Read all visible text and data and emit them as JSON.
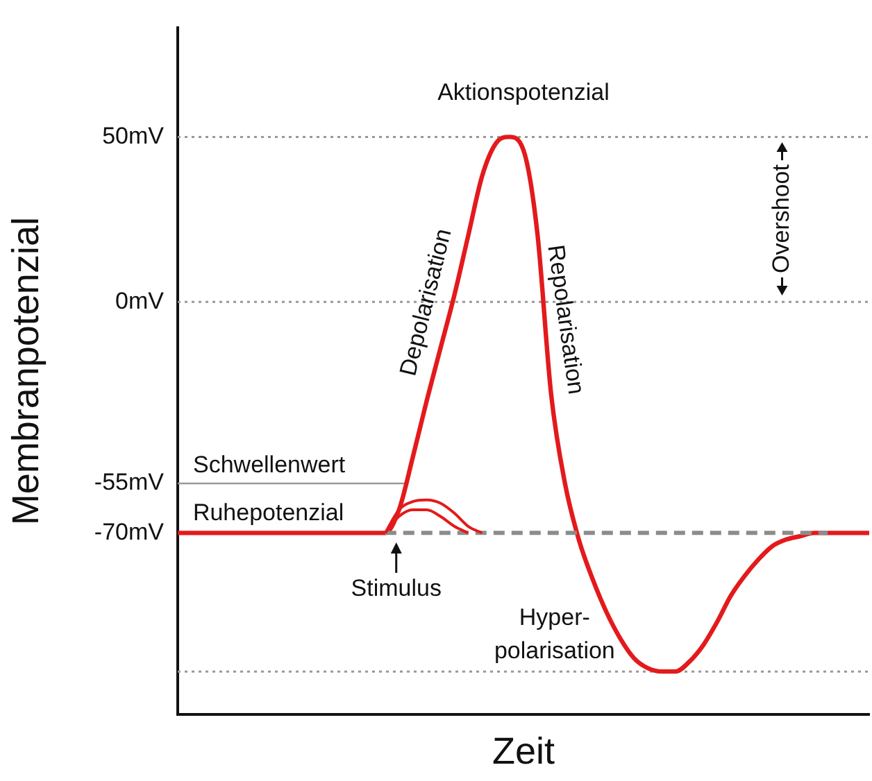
{
  "chart_data": {
    "type": "line",
    "title": "Aktionspotenzial",
    "xlabel": "Zeit",
    "ylabel": "Membranpotenzial",
    "categories": [
      null,
      null,
      null,
      null,
      null,
      null,
      null,
      null,
      null,
      null,
      null,
      null,
      null,
      null,
      null,
      null,
      null,
      null,
      null,
      null,
      null,
      null,
      null,
      null,
      null,
      null,
      null,
      null,
      null,
      null,
      null,
      null,
      null,
      null,
      null,
      null,
      null,
      null,
      null,
      null,
      null,
      null,
      null,
      null,
      null,
      null,
      null,
      null,
      null,
      null,
      null
    ],
    "series": [
      {
        "color": "#e31a1c",
        "values": [
          -70,
          -70,
          -70,
          -70,
          -70,
          -70,
          -70,
          -70,
          -70,
          -70,
          -70,
          -70,
          -70,
          -70,
          -70,
          -70,
          -63,
          -47,
          -30,
          -14,
          2,
          20,
          38,
          48,
          50,
          46,
          21,
          -28,
          -55,
          -72,
          -84,
          -94,
          -102,
          -108,
          -111,
          -112,
          -112,
          -109,
          -104,
          -97,
          -89,
          -83,
          -78,
          -74,
          -72,
          -71,
          -70,
          -70,
          -70,
          -70,
          -70
        ]
      },
      {
        "color": "#e31a1c",
        "values": [
          null,
          null,
          null,
          null,
          null,
          null,
          null,
          null,
          null,
          null,
          null,
          null,
          null,
          null,
          null,
          -70,
          -63,
          -60.5,
          -60,
          -61,
          -64,
          -68,
          -70,
          null,
          null,
          null,
          null,
          null,
          null,
          null,
          null,
          null,
          null,
          null,
          null,
          null,
          null,
          null,
          null,
          null,
          null,
          null,
          null,
          null,
          null,
          null,
          null,
          null,
          null,
          null,
          null
        ]
      },
      {
        "color": "#e31a1c",
        "values": [
          null,
          null,
          null,
          null,
          null,
          null,
          null,
          null,
          null,
          null,
          null,
          null,
          null,
          null,
          null,
          -70,
          -65,
          -63,
          -63,
          -65,
          -68,
          -70,
          null,
          null,
          null,
          null,
          null,
          null,
          null,
          null,
          null,
          null,
          null,
          null,
          null,
          null,
          null,
          null,
          null,
          null,
          null,
          null,
          null,
          null,
          null,
          null,
          null,
          null,
          null,
          null,
          null
        ]
      },
      {
        "color": "#8c8c8c",
        "line_style": "dashed",
        "values": [
          null,
          null,
          null,
          null,
          null,
          null,
          null,
          null,
          null,
          null,
          null,
          null,
          null,
          null,
          null,
          -70,
          -70,
          -70,
          -70,
          -70,
          -70,
          -70,
          -70,
          -70,
          -70,
          -70,
          -70,
          -70,
          -70,
          -70,
          -70,
          -70,
          -70,
          -70,
          -70,
          -70,
          -70,
          -70,
          -70,
          -70,
          -70,
          -70,
          -70,
          -70,
          -70,
          -70,
          -70,
          -70,
          null,
          null,
          null
        ]
      }
    ],
    "ylim": [
      -125,
      83
    ],
    "yticks": [
      {
        "value": 50,
        "label": "50mV"
      },
      {
        "value": 0,
        "label": "0mV"
      },
      {
        "value": -55,
        "label": "-55mV"
      },
      {
        "value": -70,
        "label": "-70mV"
      }
    ],
    "tick_labels": "y",
    "ref_lines": [
      {
        "axis": "y",
        "value": 50,
        "color": "#999999",
        "line_style": "dotted"
      },
      {
        "axis": "y",
        "value": 0,
        "color": "#999999",
        "line_style": "dotted"
      },
      {
        "axis": "y",
        "value": -55,
        "label": "Schwellenwert",
        "color": "#999999",
        "line_style": "solid"
      },
      {
        "axis": "y",
        "value": -112,
        "color": "#999999",
        "line_style": "dotted"
      }
    ],
    "annotations": [
      "Depolarisation",
      "Repolarisation",
      "Stimulus",
      "Hyper-polarisation",
      "Overshoot",
      {
        "text": "Ruhepotenzial",
        "y": -70
      }
    ]
  }
}
